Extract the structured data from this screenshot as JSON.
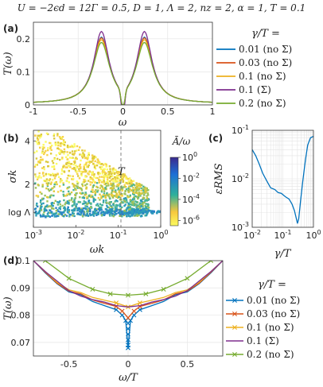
{
  "title": "U = −2ϵd = 12Γ = 0.5, D = 1, Λ = 2, nz = 2, α = 1, T = 0.1",
  "chart_data": [
    {
      "panel": "(a)",
      "type": "line",
      "xlabel": "ω",
      "ylabel": "T(ω)",
      "xlim": [
        -1,
        1
      ],
      "ylim": [
        0,
        0.25
      ],
      "xticks": [
        "-1",
        "-0.5",
        "0",
        "0.5",
        "1"
      ],
      "yticks": [
        "0",
        "0.1",
        "0.2"
      ],
      "grid": true,
      "legend_title": "γ/T =",
      "legend_position": "right",
      "series": [
        {
          "name": "0.01 (no Σ)",
          "color": "#0072BD",
          "peak": 0.205,
          "center": 0.085
        },
        {
          "name": "0.03 (no Σ)",
          "color": "#D95319",
          "peak": 0.203,
          "center": 0.085
        },
        {
          "name": "0.1 (no Σ)",
          "color": "#EDB120",
          "peak": 0.197,
          "center": 0.085
        },
        {
          "name": "0.1 (Σ)",
          "color": "#7E2F8E",
          "peak": 0.222,
          "center": 0.08
        },
        {
          "name": "0.2 (no Σ)",
          "color": "#77AC30",
          "peak": 0.189,
          "center": 0.089
        }
      ]
    },
    {
      "panel": "(b)",
      "type": "heatmap",
      "xlabel": "ωk",
      "ylabel": "σk",
      "xscale": "log",
      "xlim": [
        0.001,
        1
      ],
      "ylim": [
        0,
        4.5
      ],
      "xticks": [
        "10-3",
        "10-2",
        "10-1",
        "100"
      ],
      "yticks": [
        "log Λ",
        "2",
        "4"
      ],
      "annotation": "T",
      "colorbar_label": "Ā/ω",
      "colorbar_ticks": [
        "100",
        "10-2",
        "10-4",
        "10-6"
      ]
    },
    {
      "panel": "(c)",
      "type": "line",
      "xlabel": "γ/T",
      "ylabel": "εRMS",
      "xscale": "log",
      "yscale": "log",
      "xlim": [
        0.01,
        1
      ],
      "ylim": [
        0.001,
        0.1
      ],
      "xticks": [
        "10-2",
        "10-1",
        "100"
      ],
      "yticks": [
        "10-3",
        "10-2",
        "10-1"
      ],
      "grid": true,
      "series": [
        {
          "color": "#0072BD",
          "x": [
            0.01,
            0.013,
            0.017,
            0.022,
            0.03,
            0.04,
            0.055,
            0.07,
            0.09,
            0.12,
            0.16,
            0.2,
            0.24,
            0.27,
            0.3,
            0.33,
            0.38,
            0.45,
            0.55,
            0.65,
            0.8,
            1.0
          ],
          "y": [
            0.04,
            0.03,
            0.02,
            0.013,
            0.009,
            0.0065,
            0.006,
            0.0052,
            0.005,
            0.0043,
            0.0038,
            0.003,
            0.0022,
            0.0016,
            0.0012,
            0.0015,
            0.0035,
            0.009,
            0.025,
            0.05,
            0.07,
            0.075
          ]
        }
      ]
    },
    {
      "panel": "(d)",
      "type": "line",
      "xlabel": "ω/T",
      "ylabel": "T(ω)",
      "xlim": [
        -0.8,
        0.8
      ],
      "ylim": [
        0.065,
        0.1
      ],
      "xticks": [
        "-0.5",
        "0",
        "0.5"
      ],
      "yticks": [
        "0.07",
        "0.08",
        "0.09",
        "0.1"
      ],
      "grid": true,
      "legend_title": "γ/T =",
      "legend_position": "right",
      "series": [
        {
          "name": "0.01 (no Σ)",
          "color": "#0072BD",
          "x": [
            -0.8,
            -0.7,
            -0.6,
            -0.5,
            -0.4,
            -0.3,
            -0.2,
            -0.1,
            -0.05,
            -0.02,
            0,
            0.02,
            0.05,
            0.1,
            0.2,
            0.3,
            0.4,
            0.5,
            0.6,
            0.7,
            0.8
          ],
          "y": [
            0.1,
            0.0955,
            0.0915,
            0.0885,
            0.0875,
            0.085,
            0.0835,
            0.082,
            0.08,
            0.078,
            0.068,
            0.078,
            0.08,
            0.082,
            0.0835,
            0.085,
            0.0875,
            0.0885,
            0.0915,
            0.0955,
            0.1
          ]
        },
        {
          "name": "0.03 (no Σ)",
          "color": "#D95319",
          "x": [
            -0.8,
            -0.7,
            -0.6,
            -0.5,
            -0.4,
            -0.3,
            -0.2,
            -0.1,
            -0.05,
            0,
            0.05,
            0.1,
            0.2,
            0.3,
            0.4,
            0.5,
            0.6,
            0.7,
            0.8
          ],
          "y": [
            0.1,
            0.0957,
            0.0917,
            0.0888,
            0.0878,
            0.0856,
            0.0843,
            0.0832,
            0.0815,
            0.079,
            0.0815,
            0.0832,
            0.0843,
            0.0856,
            0.0878,
            0.0888,
            0.0917,
            0.0957,
            0.1
          ]
        },
        {
          "name": "0.1 (no Σ)",
          "color": "#EDB120",
          "x": [
            -0.8,
            -0.7,
            -0.6,
            -0.5,
            -0.4,
            -0.3,
            -0.2,
            -0.1,
            0,
            0.1,
            0.2,
            0.3,
            0.4,
            0.5,
            0.6,
            0.7,
            0.8
          ],
          "y": [
            0.1,
            0.096,
            0.092,
            0.0893,
            0.0883,
            0.0865,
            0.0855,
            0.0845,
            0.083,
            0.0845,
            0.0855,
            0.0865,
            0.0883,
            0.0893,
            0.092,
            0.096,
            0.1
          ]
        },
        {
          "name": "0.1 (Σ)",
          "color": "#7E2F8E",
          "x": [
            -0.8,
            -0.7,
            -0.6,
            -0.5,
            -0.4,
            -0.3,
            -0.2,
            -0.1,
            0,
            0.1,
            0.2,
            0.3,
            0.4,
            0.5,
            0.6,
            0.7,
            0.8
          ],
          "y": [
            0.1,
            0.096,
            0.0925,
            0.089,
            0.087,
            0.0857,
            0.0848,
            0.0835,
            0.083,
            0.0835,
            0.0848,
            0.0857,
            0.087,
            0.089,
            0.0925,
            0.096,
            0.1
          ]
        },
        {
          "name": "0.2 (no Σ)",
          "color": "#77AC30",
          "x": [
            -0.7,
            -0.5,
            -0.3,
            -0.15,
            0,
            0.15,
            0.3,
            0.5,
            0.7
          ],
          "y": [
            0.1,
            0.0935,
            0.0895,
            0.0878,
            0.0873,
            0.0878,
            0.0895,
            0.0935,
            0.1
          ]
        }
      ]
    }
  ]
}
